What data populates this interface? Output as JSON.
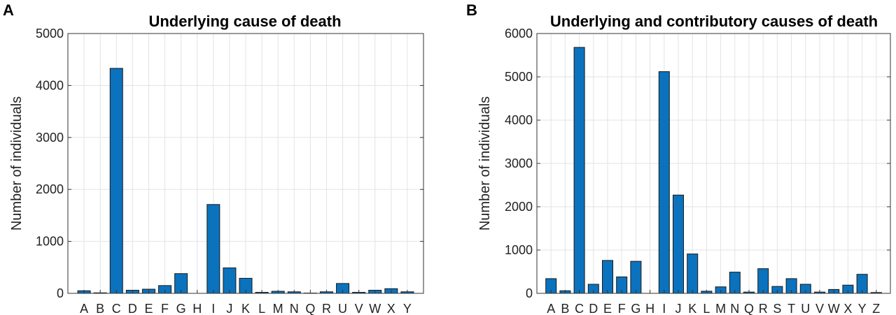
{
  "figure": {
    "panel_labels": [
      "A",
      "B"
    ]
  },
  "chart_data": [
    {
      "type": "bar",
      "title": "Underlying cause of death",
      "xlabel": "",
      "ylabel": "Number of individuals",
      "ylim": [
        0,
        5000
      ],
      "yticks": [
        0,
        1000,
        2000,
        3000,
        4000,
        5000
      ],
      "grid": true,
      "categories": [
        "A",
        "B",
        "C",
        "D",
        "E",
        "F",
        "G",
        "H",
        "I",
        "J",
        "K",
        "L",
        "M",
        "N",
        "Q",
        "R",
        "U",
        "V",
        "W",
        "X",
        "Y"
      ],
      "values": [
        50,
        10,
        4330,
        60,
        80,
        150,
        380,
        0,
        1710,
        490,
        290,
        20,
        40,
        30,
        5,
        30,
        190,
        20,
        60,
        90,
        30
      ],
      "bar_color": "#0b72bd"
    },
    {
      "type": "bar",
      "title": "Underlying and contributory causes of death",
      "xlabel": "",
      "ylabel": "Number of individuals",
      "ylim": [
        0,
        6000
      ],
      "yticks": [
        0,
        1000,
        2000,
        3000,
        4000,
        5000,
        6000
      ],
      "grid": true,
      "categories": [
        "A",
        "B",
        "C",
        "D",
        "E",
        "F",
        "G",
        "H",
        "I",
        "J",
        "K",
        "L",
        "M",
        "N",
        "Q",
        "R",
        "S",
        "T",
        "U",
        "V",
        "W",
        "X",
        "Y",
        "Z"
      ],
      "values": [
        340,
        60,
        5680,
        210,
        760,
        380,
        740,
        0,
        5120,
        2270,
        910,
        50,
        150,
        490,
        30,
        570,
        160,
        340,
        210,
        30,
        90,
        190,
        440,
        20
      ],
      "bar_color": "#0b72bd"
    }
  ]
}
